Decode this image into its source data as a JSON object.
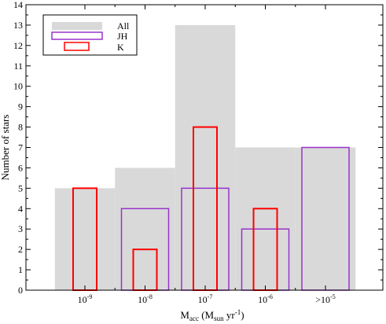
{
  "chart_data": {
    "type": "bar",
    "title": "",
    "xlabel": {
      "main": "M",
      "sub1": "acc",
      "mid": " (M",
      "sub2": "sun",
      "unit": " yr",
      "sup": "-1",
      "close": ")"
    },
    "ylabel": "Number of stars",
    "ylim": [
      0,
      14
    ],
    "yticks": [
      0,
      1,
      2,
      3,
      4,
      5,
      6,
      7,
      8,
      9,
      10,
      11,
      12,
      13,
      14
    ],
    "categories": [
      {
        "base": "10",
        "exp": "-9"
      },
      {
        "base": "10",
        "exp": "-8"
      },
      {
        "base": "10",
        "exp": "-7"
      },
      {
        "base": "10",
        "exp": "-6"
      },
      {
        "base": ">10",
        "exp": "-5"
      }
    ],
    "series": [
      {
        "name": "All",
        "style": "filled-step",
        "color": "#d9d9d9",
        "values": [
          5,
          6,
          13,
          7,
          7
        ]
      },
      {
        "name": "JH",
        "style": "outline",
        "color": "#9933cc",
        "values": [
          0,
          4,
          5,
          3,
          7
        ]
      },
      {
        "name": "K",
        "style": "outline",
        "color": "#ff0000",
        "values": [
          5,
          2,
          8,
          4,
          0
        ]
      }
    ],
    "legend_position": "top-left",
    "grid": false
  }
}
